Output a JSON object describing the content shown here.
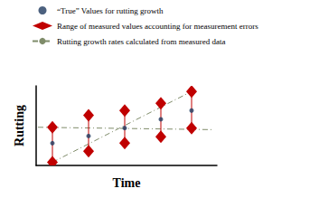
{
  "chart_data": {
    "type": "scatter",
    "x_label": "Time",
    "y_label": "Rutting",
    "xlim": [
      0,
      10
    ],
    "ylim": [
      0,
      10
    ],
    "tick_labels": false,
    "grid": false,
    "legend": "top-left",
    "series": [
      {
        "name": "“True” Values for rutting growth",
        "type": "scatter",
        "color": "#1f3a5f",
        "marker": "circle",
        "x": [
          0.9,
          2.9,
          4.9,
          6.9,
          8.6
        ],
        "values": [
          2.8,
          3.7,
          4.7,
          5.8,
          6.9
        ]
      },
      {
        "name": "Range of measured values accounting for measurement errors",
        "type": "range",
        "color": "#c00000",
        "marker": "diamond",
        "x": [
          0.9,
          2.9,
          4.9,
          6.9,
          8.6
        ],
        "low": [
          0.4,
          1.8,
          2.8,
          3.6,
          4.7
        ],
        "high": [
          4.8,
          6.3,
          6.9,
          7.8,
          9.3
        ]
      },
      {
        "name": "Rutting growth rates calculated from measured data",
        "type": "line",
        "color": "#7f8c6a",
        "line_style": "dashdot",
        "lines": [
          {
            "x": [
              0.9,
              8.6
            ],
            "values": [
              0.4,
              9.3
            ]
          },
          {
            "x": [
              0.1,
              9.8
            ],
            "values": [
              4.8,
              4.5
            ]
          }
        ]
      }
    ]
  }
}
